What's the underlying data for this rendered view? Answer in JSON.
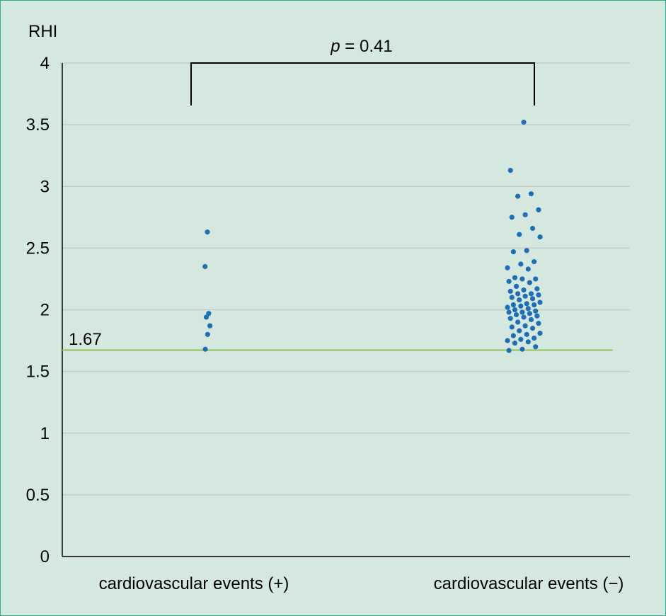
{
  "chart_data": {
    "type": "scatter",
    "ylabel": "RHI",
    "xlabel": "",
    "categories": [
      "cardiovascular events (+)",
      "cardiovascular events (−)"
    ],
    "ylim": [
      0,
      4
    ],
    "yticks": [
      "0",
      "0.5",
      "1",
      "1.5",
      "2",
      "2.5",
      "3",
      "3.5",
      "4"
    ],
    "grid": true,
    "threshold": {
      "value": 1.67,
      "label": "1.67",
      "color": "#92c353"
    },
    "annotation": {
      "italic": "p",
      "text": " = 0.41"
    },
    "point_color": "#1f6fb8",
    "series": [
      {
        "category": "cardiovascular events (+)",
        "values": [
          2.63,
          2.35,
          1.97,
          1.94,
          1.87,
          1.8,
          1.68
        ]
      },
      {
        "category": "cardiovascular events (−)",
        "values": [
          3.52,
          3.13,
          2.94,
          2.92,
          2.81,
          2.77,
          2.75,
          2.66,
          2.61,
          2.59,
          2.48,
          2.47,
          2.39,
          2.37,
          2.34,
          2.33,
          2.26,
          2.25,
          2.25,
          2.23,
          2.22,
          2.19,
          2.17,
          2.16,
          2.15,
          2.13,
          2.13,
          2.12,
          2.11,
          2.1,
          2.09,
          2.08,
          2.06,
          2.05,
          2.04,
          2.04,
          2.03,
          2.02,
          2.01,
          2.0,
          1.99,
          1.98,
          1.98,
          1.97,
          1.96,
          1.95,
          1.94,
          1.93,
          1.92,
          1.9,
          1.89,
          1.87,
          1.86,
          1.85,
          1.83,
          1.81,
          1.8,
          1.79,
          1.77,
          1.76,
          1.75,
          1.74,
          1.73,
          1.7,
          1.68,
          1.67
        ]
      }
    ]
  }
}
